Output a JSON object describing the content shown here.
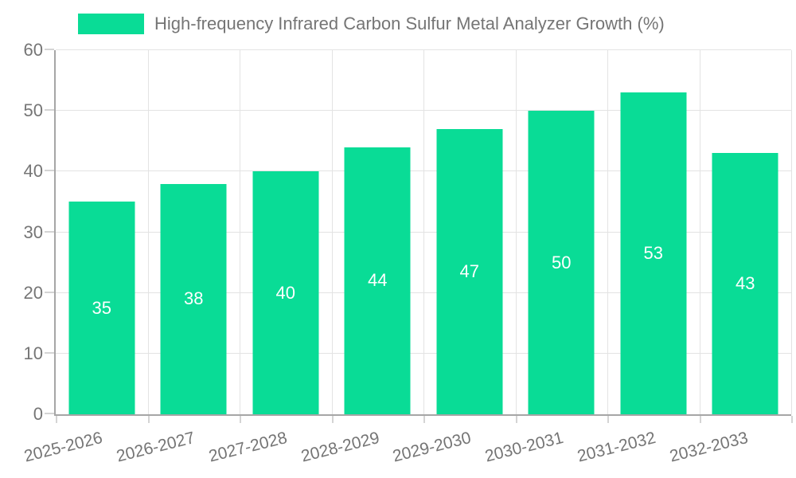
{
  "legend": {
    "swatch_color": "#09dc96",
    "label": "High-frequency Infrared Carbon Sulfur Metal Analyzer Growth (%)"
  },
  "chart_data": {
    "type": "bar",
    "title": "High-frequency Infrared Carbon Sulfur Metal Analyzer Growth (%)",
    "categories": [
      "2025-2026",
      "2026-2027",
      "2027-2028",
      "2028-2029",
      "2029-2030",
      "2030-2031",
      "2031-2032",
      "2032-2033"
    ],
    "values": [
      35,
      38,
      40,
      44,
      47,
      50,
      53,
      43
    ],
    "xlabel": "",
    "ylabel": "",
    "ylim": [
      0,
      60
    ],
    "yticks": [
      0,
      10,
      20,
      30,
      40,
      50,
      60
    ],
    "grid": "on",
    "legend_position": "top-left",
    "bar_color": "#09dc96",
    "value_label_color": "#ffffff",
    "axis_text_color": "#757575",
    "axis_line_color": "#a6a6a6",
    "grid_color": "#e3e3e3"
  }
}
